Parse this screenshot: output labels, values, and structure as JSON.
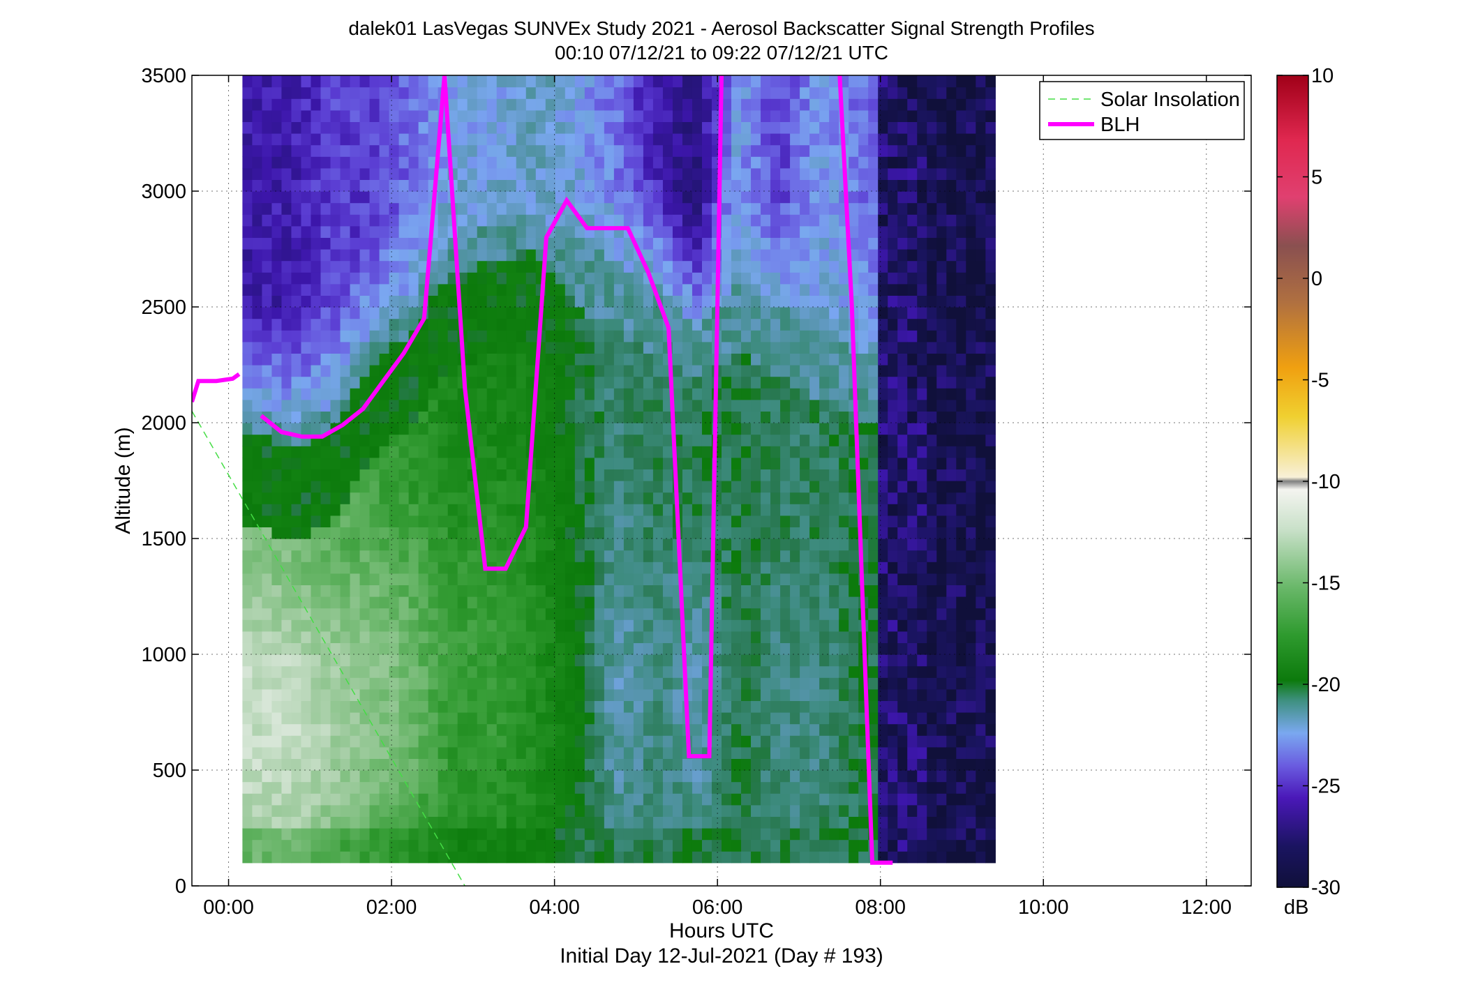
{
  "chart_data": {
    "type": "heatmap",
    "title": "dalek01 LasVegas SUNVEx Study 2021 - Aerosol Backscatter Signal Strength Profiles",
    "subtitle": "00:10 07/12/21 to 09:22 07/12/21  UTC",
    "xlabel": "Hours UTC",
    "xlabel2": "Initial Day 12-Jul-2021 (Day # 193)",
    "ylabel": "Altitude (m)",
    "xlim_hours": [
      -0.45,
      12.55
    ],
    "ylim": [
      0,
      3500
    ],
    "grid": true,
    "x_ticks": [
      {
        "value": 0,
        "label": "00:00"
      },
      {
        "value": 2,
        "label": "02:00"
      },
      {
        "value": 4,
        "label": "04:00"
      },
      {
        "value": 6,
        "label": "06:00"
      },
      {
        "value": 8,
        "label": "08:00"
      },
      {
        "value": 10,
        "label": "10:00"
      },
      {
        "value": 12,
        "label": "12:00"
      }
    ],
    "y_ticks": [
      {
        "value": 0,
        "label": "0"
      },
      {
        "value": 500,
        "label": "500"
      },
      {
        "value": 1000,
        "label": "1000"
      },
      {
        "value": 1500,
        "label": "1500"
      },
      {
        "value": 2000,
        "label": "2000"
      },
      {
        "value": 2500,
        "label": "2500"
      },
      {
        "value": 3000,
        "label": "3000"
      },
      {
        "value": 3500,
        "label": "3500"
      }
    ],
    "colorbar": {
      "label": "dB",
      "range": [
        -30,
        10
      ],
      "ticks": [
        {
          "value": 10,
          "label": "10"
        },
        {
          "value": 5,
          "label": "5"
        },
        {
          "value": 0,
          "label": "0"
        },
        {
          "value": -5,
          "label": "-5"
        },
        {
          "value": -10,
          "label": "-10"
        },
        {
          "value": -15,
          "label": "-15"
        },
        {
          "value": -20,
          "label": "-20"
        },
        {
          "value": -25,
          "label": "-25"
        },
        {
          "value": -30,
          "label": "-30"
        }
      ]
    },
    "heatmap": {
      "time_start_hours": 0.17,
      "time_end_hours": 9.37,
      "altitude_bottom_m": 100,
      "altitude_top_m": 3500,
      "note_units": "dB",
      "column_profiles": [
        {
          "t": 0.25,
          "base_top": 1950,
          "green_top": 2050,
          "low_db": -11,
          "mid_db": -15,
          "up_db": -26
        },
        {
          "t": 0.75,
          "base_top": 1900,
          "green_top": 2000,
          "low_db": -11,
          "mid_db": -15,
          "up_db": -26
        },
        {
          "t": 1.25,
          "base_top": 1950,
          "green_top": 2050,
          "low_db": -12,
          "mid_db": -16,
          "up_db": -25
        },
        {
          "t": 1.75,
          "base_top": 2250,
          "green_top": 2350,
          "low_db": -13,
          "mid_db": -17,
          "up_db": -25
        },
        {
          "t": 2.25,
          "base_top": 2400,
          "green_top": 2500,
          "low_db": -14,
          "mid_db": -18,
          "up_db": -24
        },
        {
          "t": 2.75,
          "base_top": 2650,
          "green_top": 2800,
          "low_db": -16,
          "mid_db": -19,
          "up_db": -23
        },
        {
          "t": 3.25,
          "base_top": 2700,
          "green_top": 2850,
          "low_db": -16,
          "mid_db": -19,
          "up_db": -23
        },
        {
          "t": 3.75,
          "base_top": 2750,
          "green_top": 2900,
          "low_db": -17,
          "mid_db": -19,
          "up_db": -22
        },
        {
          "t": 4.25,
          "base_top": 2500,
          "green_top": 2800,
          "low_db": -19,
          "mid_db": -20,
          "up_db": -23
        },
        {
          "t": 4.75,
          "base_top": 2400,
          "green_top": 2700,
          "low_db": -22,
          "mid_db": -20,
          "up_db": -24
        },
        {
          "t": 5.25,
          "base_top": 2300,
          "green_top": 2600,
          "low_db": -21,
          "mid_db": -20,
          "up_db": -26
        },
        {
          "t": 5.75,
          "base_top": 2200,
          "green_top": 2400,
          "low_db": -22,
          "mid_db": -19,
          "up_db": -27
        },
        {
          "t": 6.25,
          "base_top": 2300,
          "green_top": 2600,
          "low_db": -20,
          "mid_db": -20,
          "up_db": -23
        },
        {
          "t": 6.75,
          "base_top": 2200,
          "green_top": 2500,
          "low_db": -21,
          "mid_db": -20,
          "up_db": -25
        },
        {
          "t": 7.25,
          "base_top": 2100,
          "green_top": 2400,
          "low_db": -21,
          "mid_db": -20,
          "up_db": -23
        },
        {
          "t": 7.75,
          "base_top": 2000,
          "green_top": 2300,
          "low_db": -20,
          "mid_db": -20,
          "up_db": -24
        },
        {
          "t": 8.3,
          "base_top": 0,
          "green_top": 0,
          "low_db": -28,
          "mid_db": -28,
          "up_db": -28
        },
        {
          "t": 8.8,
          "base_top": 0,
          "green_top": 0,
          "low_db": -29,
          "mid_db": -29,
          "up_db": -29
        }
      ]
    },
    "series": [
      {
        "name": "Solar Insolation",
        "style": "dashed",
        "color": "#33dd33",
        "points": [
          [
            -0.45,
            2050
          ],
          [
            2.9,
            0
          ]
        ]
      },
      {
        "name": "BLH",
        "style": "solid",
        "color": "#ff00ff",
        "segments": [
          [
            [
              -0.45,
              2090
            ],
            [
              -0.37,
              2180
            ],
            [
              -0.15,
              2180
            ],
            [
              0.05,
              2190
            ],
            [
              0.13,
              2210
            ]
          ],
          [
            [
              0.4,
              2030
            ],
            [
              0.65,
              1960
            ],
            [
              0.9,
              1940
            ],
            [
              1.15,
              1940
            ],
            [
              1.4,
              1990
            ],
            [
              1.65,
              2060
            ],
            [
              1.9,
              2180
            ],
            [
              2.15,
              2300
            ],
            [
              2.4,
              2450
            ],
            [
              2.65,
              3500
            ],
            [
              2.9,
              2150
            ],
            [
              3.15,
              1370
            ],
            [
              3.4,
              1370
            ],
            [
              3.65,
              1550
            ],
            [
              3.9,
              2800
            ],
            [
              4.15,
              2960
            ],
            [
              4.4,
              2840
            ],
            [
              4.65,
              2840
            ],
            [
              4.9,
              2840
            ],
            [
              5.15,
              2650
            ],
            [
              5.4,
              2410
            ],
            [
              5.65,
              560
            ],
            [
              5.9,
              560
            ],
            [
              6.05,
              3500
            ]
          ],
          [
            [
              7.5,
              3500
            ],
            [
              7.65,
              2500
            ],
            [
              7.9,
              100
            ],
            [
              8.15,
              100
            ]
          ]
        ]
      }
    ],
    "legend": {
      "placement": "top-right",
      "entries": [
        "Solar Insolation",
        "BLH"
      ]
    }
  }
}
